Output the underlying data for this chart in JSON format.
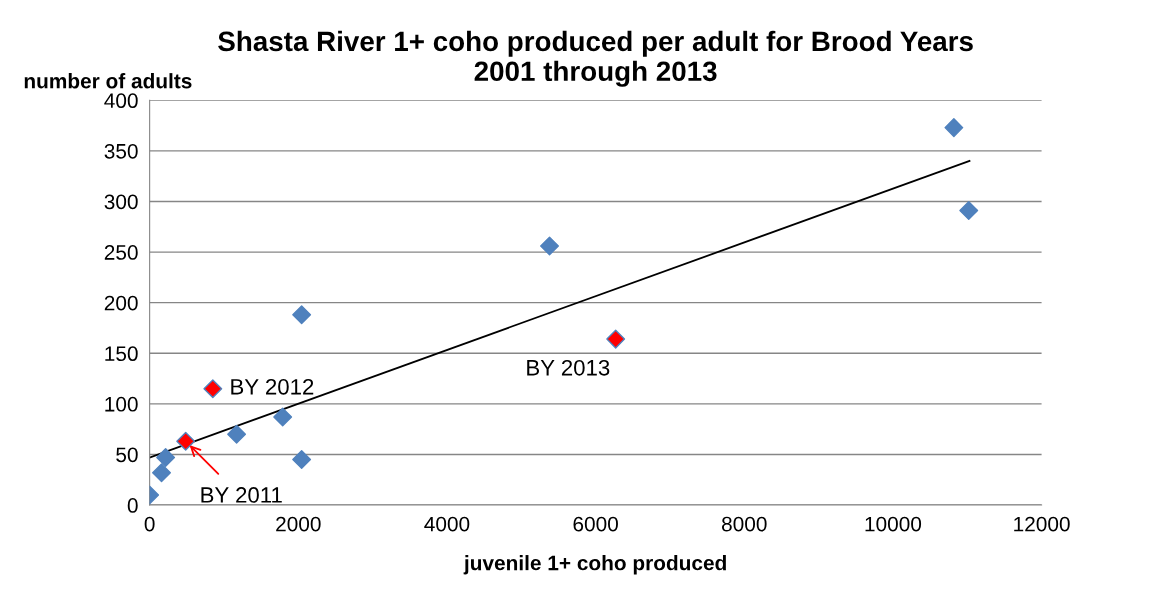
{
  "chart_data": {
    "type": "scatter",
    "title": "Shasta River 1+ coho produced per adult for Brood Years\n2001 through 2013",
    "xlabel": "juvenile 1+ coho produced",
    "ylabel": "number of adults",
    "x": [
      0,
      160,
      215,
      1170,
      1790,
      2045,
      2045,
      5380,
      10820,
      11020
    ],
    "series": [
      {
        "color": "#4f81bd",
        "values": [
          10,
          32,
          47,
          70,
          87,
          188,
          45,
          256,
          373,
          291
        ]
      },
      {
        "color": "#ff0000",
        "x": [
          485,
          850,
          6270
        ],
        "values": [
          63,
          115,
          164
        ]
      },
      {
        "type": "line",
        "color": "#000000",
        "x": [
          0,
          11030
        ],
        "values": [
          47,
          340
        ],
        "marker": "none"
      }
    ],
    "annotations": [
      {
        "text": "BY 2011",
        "x": 485,
        "y": 63
      },
      {
        "text": "BY 2012",
        "x": 850,
        "y": 115
      },
      {
        "text": "BY 2013",
        "x": 6270,
        "y": 164
      }
    ],
    "xlim": [
      0,
      12000
    ],
    "xticks": [
      0,
      2000,
      4000,
      6000,
      8000,
      10000,
      12000
    ],
    "ylim": [
      0,
      400
    ],
    "yticks": [
      0,
      50,
      100,
      150,
      200,
      250,
      300,
      350,
      400
    ],
    "grid": "y",
    "marker": "diamond",
    "legend": false
  }
}
